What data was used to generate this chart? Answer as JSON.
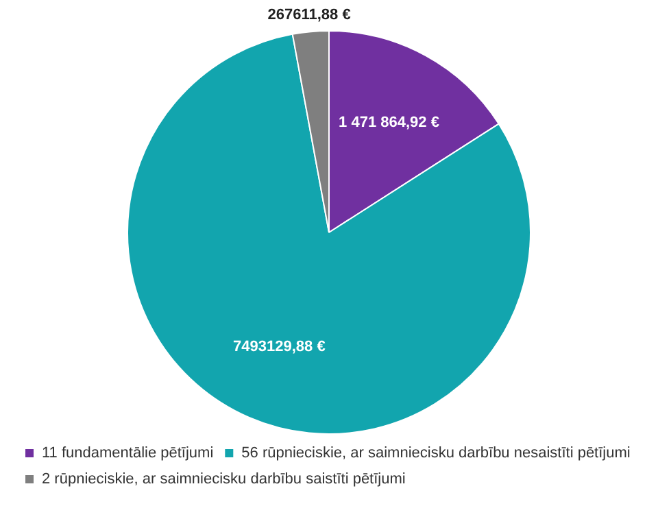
{
  "chart_data": {
    "type": "pie",
    "categories": [
      "11 fundamentālie pētījumi",
      "56 rūpnieciskie, ar saimniecisku darbību nesaistīti pētījumi",
      "2 rūpnieciskie, ar saimniecisku darbību saistīti pētījumi"
    ],
    "values": [
      1471864.92,
      7493129.88,
      267611.88
    ],
    "value_labels": [
      "1 471 864,92 €",
      "7493129,88 €",
      "267611,88 €"
    ],
    "colors": [
      "#7030a0",
      "#12a5ae",
      "#7f7f7f"
    ],
    "legend": "bottom"
  }
}
